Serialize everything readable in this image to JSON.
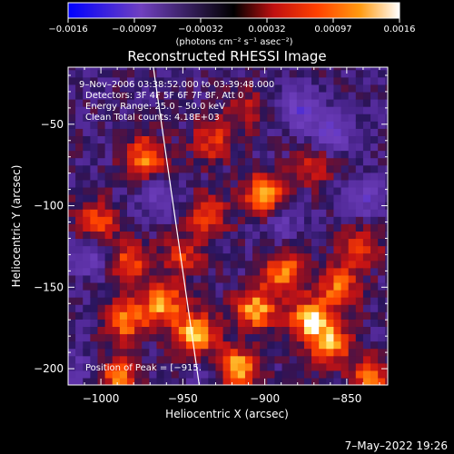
{
  "chart_data": {
    "type": "heatmap",
    "title": "Reconstructed RHESSI Image",
    "xlabel": "Heliocentric X (arcsec)",
    "ylabel": "Heliocentric Y (arcsec)",
    "xlim": [
      -1020,
      -825
    ],
    "ylim": [
      -210,
      -15
    ],
    "x_ticks": [
      -1000,
      -950,
      -900,
      -850
    ],
    "y_ticks": [
      -200,
      -150,
      -100,
      -50
    ],
    "x_tick_labels": [
      "−1000",
      "−950",
      "−900",
      "−850"
    ],
    "y_tick_labels": [
      "−200",
      "−150",
      "−100",
      "−50"
    ],
    "colorbar": {
      "range": [
        -0.0016,
        0.0016
      ],
      "tick_labels": [
        "−0.0016",
        "−0.00097",
        "−0.00032",
        "0.00032",
        "0.00097",
        "0.0016"
      ],
      "label": "(photons cm⁻² s⁻¹ asec⁻²)",
      "colors": [
        "#0000ff",
        "#7040c0",
        "#000000",
        "#c01010",
        "#ff4000",
        "#ff9a10",
        "#ffffff"
      ]
    },
    "annotations": [
      "9–Nov–2006 03:38:52.000 to 03:39:48.000",
      "Detectors: 3F 4F 5F 6F 7F 8F, Att 0",
      "Energy Range: 25.0 – 50.0 keV",
      "Clean    Total counts: 4.18E+03"
    ],
    "peak_label": "Position of Peak = [−915.",
    "limb_line": {
      "x": [
        -968,
        -940
      ],
      "y": [
        -15,
        -210
      ]
    },
    "hotspots": [
      {
        "x": -1003,
        "y": -110,
        "v": 0.0011
      },
      {
        "x": -972,
        "y": -70,
        "v": 0.0012
      },
      {
        "x": -983,
        "y": -135,
        "v": 0.001
      },
      {
        "x": -962,
        "y": -160,
        "v": 0.0013
      },
      {
        "x": -985,
        "y": -170,
        "v": 0.0012
      },
      {
        "x": -990,
        "y": -205,
        "v": 0.0011
      },
      {
        "x": -942,
        "y": -178,
        "v": 0.0015
      },
      {
        "x": -918,
        "y": -200,
        "v": 0.0016
      },
      {
        "x": -932,
        "y": -60,
        "v": 0.0009
      },
      {
        "x": -935,
        "y": -105,
        "v": 0.0009
      },
      {
        "x": -900,
        "y": -93,
        "v": 0.0014
      },
      {
        "x": -888,
        "y": -140,
        "v": 0.0012
      },
      {
        "x": -905,
        "y": -163,
        "v": 0.0014
      },
      {
        "x": -872,
        "y": -170,
        "v": 0.0015
      },
      {
        "x": -860,
        "y": -185,
        "v": 0.0012
      },
      {
        "x": -855,
        "y": -150,
        "v": 0.0011
      },
      {
        "x": -842,
        "y": -125,
        "v": 0.0009
      },
      {
        "x": -870,
        "y": -75,
        "v": 0.0007
      },
      {
        "x": -835,
        "y": -205,
        "v": 0.0011
      },
      {
        "x": -912,
        "y": -40,
        "v": 0.0006
      },
      {
        "x": -950,
        "y": -130,
        "v": 0.0008
      }
    ],
    "coldspots": [
      {
        "x": -1005,
        "y": -130,
        "v": -0.0007
      },
      {
        "x": -880,
        "y": -40,
        "v": -0.0008
      },
      {
        "x": -860,
        "y": -55,
        "v": -0.0009
      },
      {
        "x": -965,
        "y": -95,
        "v": -0.0006
      },
      {
        "x": -840,
        "y": -95,
        "v": -0.0007
      },
      {
        "x": -930,
        "y": -205,
        "v": -0.0005
      },
      {
        "x": -1010,
        "y": -200,
        "v": -0.0004
      },
      {
        "x": -890,
        "y": -110,
        "v": -0.0005
      }
    ]
  },
  "footer": {
    "timestamp": "7–May–2022 19:26"
  }
}
